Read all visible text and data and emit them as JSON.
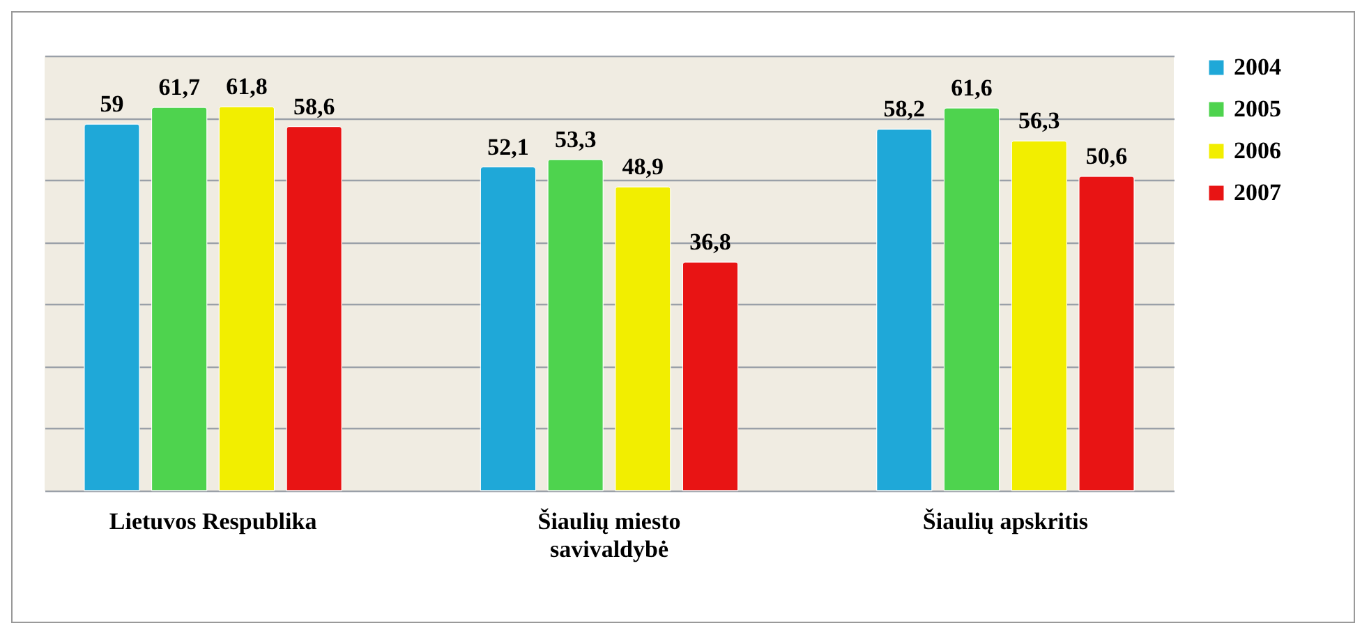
{
  "chart_data": {
    "type": "bar",
    "categories": [
      "Lietuvos Respublika",
      "Šiaulių miesto savivaldybė",
      "Šiaulių apskritis"
    ],
    "series": [
      {
        "name": "2004",
        "color": "#1fa8d8",
        "values": [
          59,
          52.1,
          58.2
        ],
        "value_labels": [
          "59",
          "52,1",
          "58,2"
        ]
      },
      {
        "name": "2005",
        "color": "#4ed34e",
        "values": [
          61.7,
          53.3,
          61.6
        ],
        "value_labels": [
          "61,7",
          "53,3",
          "61,6"
        ]
      },
      {
        "name": "2006",
        "color": "#f2ee00",
        "values": [
          61.8,
          48.9,
          56.3
        ],
        "value_labels": [
          "61,8",
          "48,9",
          "56,3"
        ]
      },
      {
        "name": "2007",
        "color": "#e81414",
        "values": [
          58.6,
          36.8,
          50.6
        ],
        "value_labels": [
          "58,6",
          "36,8",
          "50,6"
        ]
      }
    ],
    "ylim": [
      0,
      70
    ],
    "yticks": [
      {
        "value": 0,
        "label": null
      },
      {
        "value": 10,
        "label": null
      },
      {
        "value": 20,
        "label": null
      },
      {
        "value": 30,
        "label": null
      },
      {
        "value": 40,
        "label": null
      },
      {
        "value": 50,
        "label": null
      },
      {
        "value": 60,
        "label": null
      },
      {
        "value": 70,
        "label": null
      }
    ],
    "tick_labels": "x",
    "grid": "y",
    "legend": "right"
  }
}
